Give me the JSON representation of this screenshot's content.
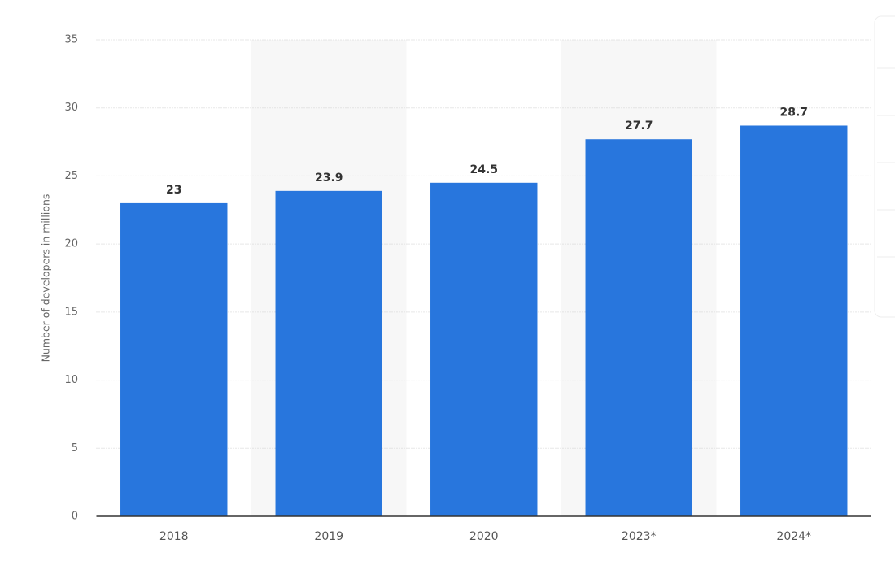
{
  "chart_data": {
    "type": "bar",
    "y_label": "Number of developers in millions",
    "categories": [
      "2018",
      "2019",
      "2020",
      "2023*",
      "2024*"
    ],
    "values": [
      23,
      23.9,
      24.5,
      27.7,
      28.7
    ],
    "color": "#2876dd",
    "ylim": [
      0,
      35
    ],
    "yticks": [
      0,
      5,
      10,
      15,
      20,
      25,
      30,
      35
    ],
    "grid": true
  }
}
